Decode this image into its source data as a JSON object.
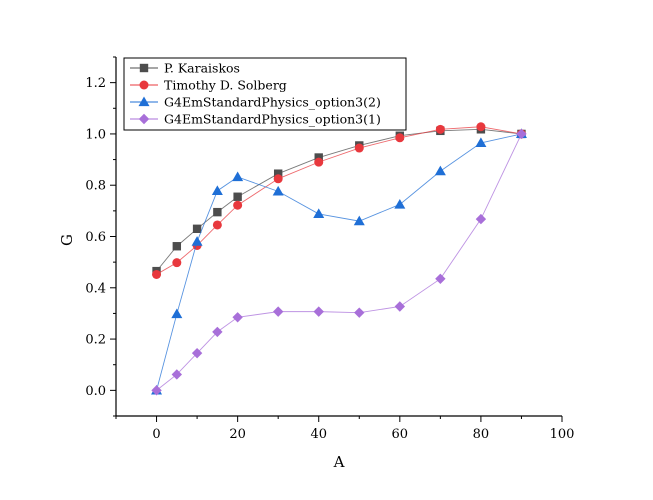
{
  "chart_data": {
    "type": "line",
    "xlabel": "A",
    "ylabel": "G",
    "xlim": [
      -10,
      100
    ],
    "ylim": [
      -0.1,
      1.3
    ],
    "xticks": [
      0,
      20,
      40,
      60,
      80,
      100
    ],
    "yticks": [
      0.0,
      0.2,
      0.4,
      0.6,
      0.8,
      1.0,
      1.2
    ],
    "xtick_labels": [
      "0",
      "20",
      "40",
      "60",
      "80",
      "100"
    ],
    "ytick_labels": [
      "0.0",
      "0.2",
      "0.4",
      "0.6",
      "0.8",
      "1.0",
      "1.2"
    ],
    "legend_position": "top-left",
    "grid": false,
    "series": [
      {
        "name": "P. Karaiskos",
        "marker": "square",
        "color": "#4d4d4d",
        "x": [
          0,
          5,
          10,
          15,
          20,
          30,
          40,
          50,
          60,
          70,
          80,
          90
        ],
        "y": [
          0.465,
          0.562,
          0.63,
          0.695,
          0.755,
          0.845,
          0.908,
          0.955,
          0.993,
          1.012,
          1.018,
          1.0
        ]
      },
      {
        "name": "Timothy D. Solberg",
        "marker": "circle",
        "color": "#e8383d",
        "x": [
          0,
          5,
          10,
          15,
          20,
          30,
          40,
          50,
          60,
          70,
          80,
          90
        ],
        "y": [
          0.452,
          0.498,
          0.565,
          0.645,
          0.722,
          0.825,
          0.89,
          0.945,
          0.985,
          1.018,
          1.028,
          1.0
        ]
      },
      {
        "name": "G4EmStandardPhysics_option3(2)",
        "marker": "triangle",
        "color": "#1f6fd6",
        "x": [
          0,
          5,
          10,
          15,
          20,
          30,
          40,
          50,
          60,
          70,
          80,
          90
        ],
        "y": [
          0.0,
          0.298,
          0.58,
          0.778,
          0.832,
          0.776,
          0.688,
          0.66,
          0.725,
          0.855,
          0.965,
          1.0
        ]
      },
      {
        "name": "G4EmStandardPhysics_option3(1)",
        "marker": "diamond",
        "color": "#a86fd9",
        "x": [
          0,
          5,
          10,
          15,
          20,
          30,
          40,
          50,
          60,
          70,
          80,
          90
        ],
        "y": [
          0.0,
          0.062,
          0.145,
          0.228,
          0.285,
          0.307,
          0.307,
          0.303,
          0.327,
          0.435,
          0.668,
          1.0
        ]
      }
    ]
  }
}
